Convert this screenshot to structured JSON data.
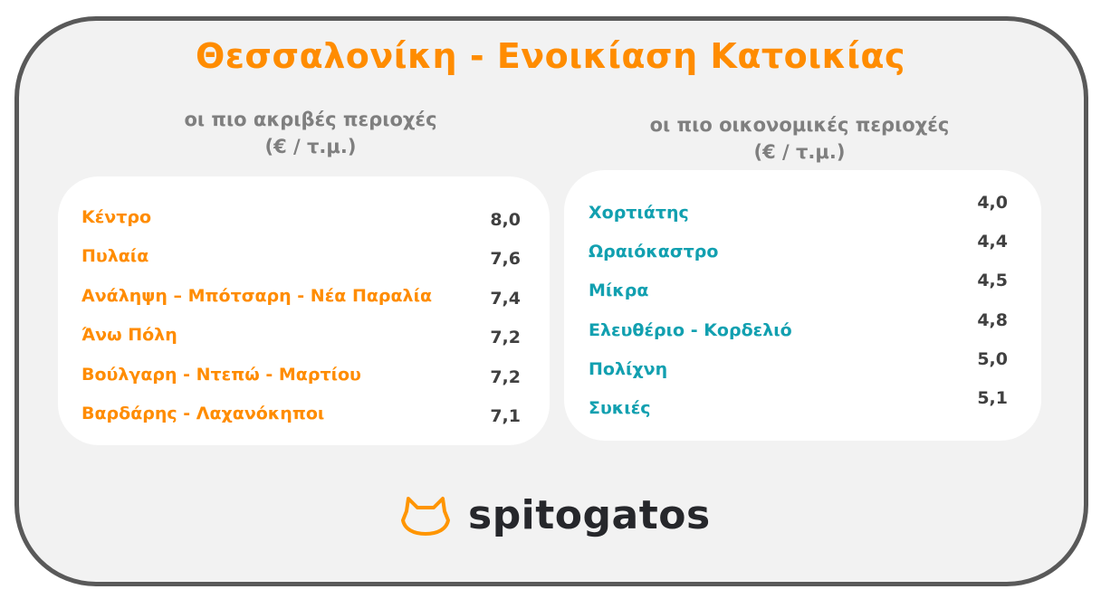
{
  "title": "Θεσσαλονίκη - Ενοικίαση Κατοικίας",
  "expensive": {
    "heading": "οι πιο ακριβές περιοχές",
    "unit": "(€ / τ.μ.)",
    "rows": [
      {
        "name": "Κέντρο",
        "value": "8,0"
      },
      {
        "name": "Πυλαία",
        "value": "7,6"
      },
      {
        "name": "Ανάληψη – Μπότσαρη - Νέα Παραλία",
        "value": "7,4"
      },
      {
        "name": "Άνω Πόλη",
        "value": "7,2"
      },
      {
        "name": "Βούλγαρη - Ντεπώ - Μαρτίου",
        "value": "7,2"
      },
      {
        "name": "Βαρδάρης - Λαχανόκηποι",
        "value": "7,1"
      }
    ]
  },
  "cheap": {
    "heading": "οι πιο οικονομικές περιοχές",
    "unit": "(€ / τ.μ.)",
    "rows": [
      {
        "name": "Χορτιάτης",
        "value": "4,0"
      },
      {
        "name": "Ωραιόκαστρο",
        "value": "4,4"
      },
      {
        "name": "Μίκρα",
        "value": "4,5"
      },
      {
        "name": "Ελευθέριο - Κορδελιό",
        "value": "4,8"
      },
      {
        "name": "Πολίχνη",
        "value": "5,0"
      },
      {
        "name": "Συκιές",
        "value": "5,1"
      }
    ]
  },
  "logo": {
    "text": "spitogatos",
    "icon": "cat-head-icon"
  },
  "colors": {
    "accent": "#ff8c00",
    "teal": "#12a0b0",
    "frame": "#595959",
    "background": "#f2f2f2"
  }
}
